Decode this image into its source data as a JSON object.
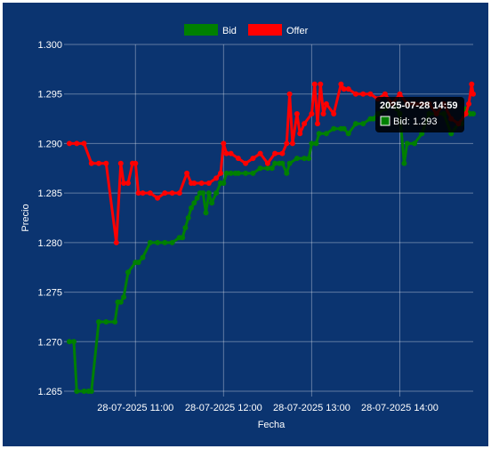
{
  "chart_data": {
    "type": "line",
    "xlabel": "Fecha",
    "ylabel": "Precio",
    "ylim": [
      1.265,
      1.3
    ],
    "yticks": [
      "1.300",
      "1.295",
      "1.290",
      "1.285",
      "1.280",
      "1.275",
      "1.270",
      "1.265"
    ],
    "xlim": [
      "10:15",
      "14:50"
    ],
    "xticks": [
      {
        "time": "11:00",
        "label": "28-07-2025 11:00"
      },
      {
        "time": "12:00",
        "label": "28-07-2025 12:00"
      },
      {
        "time": "13:00",
        "label": "28-07-2025 13:00"
      },
      {
        "time": "14:00",
        "label": "28-07-2025 14:00"
      }
    ],
    "grid": true,
    "legend_position": "top",
    "series": [
      {
        "name": "Bid",
        "color": "#008000",
        "x": [
          "10:15",
          "10:18",
          "10:20",
          "10:25",
          "10:28",
          "10:30",
          "10:35",
          "10:40",
          "10:46",
          "10:48",
          "10:50",
          "10:52",
          "10:55",
          "11:00",
          "11:02",
          "11:05",
          "11:10",
          "11:15",
          "11:20",
          "11:25",
          "11:30",
          "11:32",
          "11:34",
          "11:36",
          "11:38",
          "11:40",
          "11:42",
          "11:44",
          "11:46",
          "11:48",
          "11:50",
          "11:52",
          "11:55",
          "11:58",
          "12:00",
          "12:02",
          "12:05",
          "12:08",
          "12:10",
          "12:15",
          "12:20",
          "12:25",
          "12:30",
          "12:33",
          "12:35",
          "12:38",
          "12:40",
          "12:43",
          "12:45",
          "12:50",
          "12:55",
          "12:58",
          "13:00",
          "13:03",
          "13:05",
          "13:10",
          "13:15",
          "13:20",
          "13:22",
          "13:25",
          "13:30",
          "13:35",
          "13:40",
          "13:42",
          "13:45",
          "13:50",
          "13:53",
          "13:55",
          "13:58",
          "14:00",
          "14:03",
          "14:05",
          "14:10",
          "14:15",
          "14:20",
          "14:25",
          "14:30",
          "14:35",
          "14:40",
          "14:42",
          "14:45",
          "14:48",
          "14:50"
        ],
        "values": [
          1.27,
          1.27,
          1.265,
          1.265,
          1.265,
          1.265,
          1.272,
          1.272,
          1.272,
          1.274,
          1.274,
          1.2745,
          1.277,
          1.278,
          1.278,
          1.2785,
          1.28,
          1.28,
          1.28,
          1.28,
          1.2805,
          1.2805,
          1.2815,
          1.2825,
          1.2835,
          1.284,
          1.2845,
          1.285,
          1.285,
          1.283,
          1.285,
          1.284,
          1.285,
          1.286,
          1.286,
          1.287,
          1.287,
          1.287,
          1.287,
          1.287,
          1.287,
          1.2875,
          1.2875,
          1.2875,
          1.288,
          1.288,
          1.288,
          1.287,
          1.288,
          1.2885,
          1.2885,
          1.2885,
          1.29,
          1.29,
          1.291,
          1.291,
          1.2915,
          1.2915,
          1.2915,
          1.291,
          1.292,
          1.292,
          1.2925,
          1.2925,
          1.293,
          1.2935,
          1.294,
          1.294,
          1.2935,
          1.293,
          1.288,
          1.29,
          1.29,
          1.291,
          1.293,
          1.293,
          1.293,
          1.291,
          1.292,
          1.292,
          1.2935,
          1.293,
          1.293
        ]
      },
      {
        "name": "Offer",
        "color": "#ff0000",
        "x": [
          "10:15",
          "10:20",
          "10:25",
          "10:30",
          "10:35",
          "10:40",
          "10:47",
          "10:50",
          "10:52",
          "10:55",
          "10:58",
          "11:00",
          "11:02",
          "11:05",
          "11:10",
          "11:15",
          "11:20",
          "11:25",
          "11:30",
          "11:35",
          "11:38",
          "11:40",
          "11:45",
          "11:50",
          "11:55",
          "11:58",
          "12:00",
          "12:02",
          "12:05",
          "12:10",
          "12:15",
          "12:20",
          "12:25",
          "12:30",
          "12:35",
          "12:40",
          "12:43",
          "12:45",
          "12:47",
          "12:50",
          "12:52",
          "12:55",
          "13:00",
          "13:02",
          "13:04",
          "13:06",
          "13:08",
          "13:10",
          "13:15",
          "13:20",
          "13:22",
          "13:25",
          "13:30",
          "13:35",
          "13:40",
          "13:45",
          "13:50",
          "13:55",
          "14:00",
          "14:05",
          "14:10",
          "14:15",
          "14:20",
          "14:25",
          "14:30",
          "14:35",
          "14:40",
          "14:45",
          "14:47",
          "14:49",
          "14:50"
        ],
        "values": [
          1.29,
          1.29,
          1.29,
          1.288,
          1.288,
          1.288,
          1.28,
          1.288,
          1.286,
          1.286,
          1.288,
          1.288,
          1.285,
          1.285,
          1.285,
          1.2845,
          1.285,
          1.285,
          1.285,
          1.287,
          1.286,
          1.286,
          1.286,
          1.286,
          1.2865,
          1.287,
          1.29,
          1.289,
          1.289,
          1.2885,
          1.288,
          1.2885,
          1.289,
          1.288,
          1.289,
          1.289,
          1.29,
          1.295,
          1.29,
          1.293,
          1.291,
          1.292,
          1.293,
          1.296,
          1.292,
          1.296,
          1.293,
          1.294,
          1.293,
          1.296,
          1.2955,
          1.2955,
          1.295,
          1.295,
          1.295,
          1.2945,
          1.295,
          1.294,
          1.295,
          1.294,
          1.294,
          1.294,
          1.294,
          1.293,
          1.294,
          1.2925,
          1.292,
          1.293,
          1.294,
          1.296,
          1.295
        ]
      }
    ],
    "tooltip": {
      "title": "2025-07-28 14:59",
      "body": "Bid: 1.293",
      "series": "Bid"
    }
  }
}
